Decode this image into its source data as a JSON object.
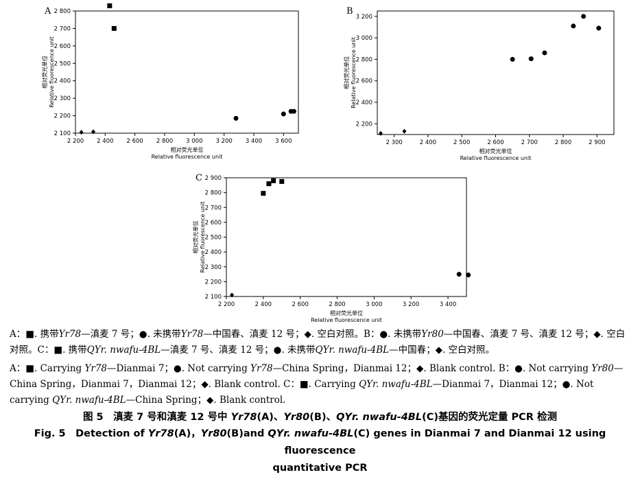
{
  "chart_data": [
    {
      "panel": "A",
      "type": "scatter",
      "xlim": [
        2200,
        3700
      ],
      "ylim": [
        2100,
        2800
      ],
      "x_ticks": [
        "2 200",
        "2 400",
        "2 600",
        "2 800",
        "3 000",
        "3 200",
        "3 400",
        "3 600"
      ],
      "y_ticks": [
        "2 100",
        "2 200",
        "2 300",
        "2 400",
        "2 500",
        "2 600",
        "2 700",
        "2 800"
      ],
      "xlabel": [
        "相对荧光单位",
        "Relative fluorescence unit"
      ],
      "ylabel": [
        "相对荧光单位",
        "Relative fluorescence unit"
      ],
      "series": [
        {
          "marker": "square",
          "points": [
            [
              2430,
              2830
            ],
            [
              2460,
              2700
            ]
          ]
        },
        {
          "marker": "circle",
          "points": [
            [
              3280,
              2185
            ],
            [
              3600,
              2210
            ],
            [
              3650,
              2225
            ],
            [
              3670,
              2225
            ]
          ]
        },
        {
          "marker": "diamond",
          "points": [
            [
              2240,
              2105
            ],
            [
              2320,
              2108
            ]
          ]
        }
      ]
    },
    {
      "panel": "B",
      "type": "scatter",
      "xlim": [
        2250,
        2950
      ],
      "ylim": [
        2100,
        3250
      ],
      "x_ticks": [
        "2 300",
        "2 400",
        "2 500",
        "2 600",
        "2 700",
        "2 800",
        "2 900"
      ],
      "y_ticks": [
        "2 200",
        "2 400",
        "2 600",
        "2 800",
        "3 000",
        "3 200"
      ],
      "xlabel": [
        "相对荧光单位",
        "Relative fluorescence unit"
      ],
      "ylabel": [
        "相对荧光单位",
        "Relative fluorescence unit"
      ],
      "series": [
        {
          "marker": "circle",
          "points": [
            [
              2650,
              2800
            ],
            [
              2705,
              2805
            ],
            [
              2745,
              2860
            ],
            [
              2830,
              3110
            ],
            [
              2860,
              3200
            ],
            [
              2905,
              3090
            ]
          ]
        },
        {
          "marker": "diamond",
          "points": [
            [
              2260,
              2110
            ],
            [
              2330,
              2130
            ]
          ]
        }
      ]
    },
    {
      "panel": "C",
      "type": "scatter",
      "xlim": [
        2200,
        3500
      ],
      "ylim": [
        2100,
        2900
      ],
      "x_ticks": [
        "2 200",
        "2 400",
        "2 600",
        "2 800",
        "3 000",
        "3 200",
        "3 400"
      ],
      "y_ticks": [
        "2 100",
        "2 200",
        "2 300",
        "2 400",
        "2 500",
        "2 600",
        "2 700",
        "2 800",
        "2 900"
      ],
      "xlabel": [
        "相对荧光单位",
        "Relative fluorescence unit"
      ],
      "ylabel": [
        "相对荧光单位",
        "Relative fluorescence unit"
      ],
      "series": [
        {
          "marker": "square",
          "points": [
            [
              2400,
              2795
            ],
            [
              2430,
              2860
            ],
            [
              2455,
              2880
            ],
            [
              2500,
              2875
            ]
          ]
        },
        {
          "marker": "circle",
          "points": [
            [
              3460,
              2250
            ],
            [
              3510,
              2245
            ]
          ]
        },
        {
          "marker": "diamond",
          "points": [
            [
              2230,
              2110
            ]
          ]
        }
      ]
    }
  ],
  "caption": {
    "cn_1": "A：■. 携带",
    "cn_g1": "Yr78",
    "cn_2": "—滇麦 7 号；●. 未携带",
    "cn_g2": "Yr78",
    "cn_3": "—中国春、滇麦 12 号；◆. 空白对照。B：●. 未携带",
    "cn_g3": "Yr80",
    "cn_4": "—中国春、滇麦 7 号、滇麦 12 号；◆. 空白对照。C：■. 携带",
    "cn_g4": "QYr. nwafu-4BL",
    "cn_5": "—滇麦 7 号、滇麦 12 号；●. 未携带",
    "cn_g5": "QYr. nwafu-4BL",
    "cn_6": "—中国春；◆. 空白对照。",
    "en_1": "A：■. Carrying ",
    "en_g1": "Yr78",
    "en_2": "—Dianmai 7；●. Not carrying ",
    "en_g2": "Yr78",
    "en_3": "—China Spring，Dianmai 12；◆. Blank control. B：●. Not carrying ",
    "en_g3": "Yr80",
    "en_4": "—China Spring，Dianmai 7，Dianmai 12；◆. Blank control. C：■. Carrying ",
    "en_g4": "QYr. nwafu-4BL",
    "en_5": "—Dianmai 7，Dianmai 12；●. Not carrying ",
    "en_g5": "QYr. nwafu-4BL",
    "en_6": "—China Spring；◆. Blank control.",
    "title_cn_1": "图 5　滇麦 7 号和滇麦 12 号中 ",
    "title_cn_g1": "Yr78",
    "title_cn_2": "(A)、",
    "title_cn_g2": "Yr80",
    "title_cn_3": "(B)、",
    "title_cn_g3": "QYr. nwafu-4BL",
    "title_cn_4": "(C)基因的荧光定量 PCR 检测",
    "title_en_1": "Fig. 5　Detection of ",
    "title_en_g1": "Yr78",
    "title_en_2": "(A)，",
    "title_en_g2": "Yr80",
    "title_en_3": "(B)and ",
    "title_en_g3": "QYr. nwafu-4BL",
    "title_en_4": "(C) genes in Dianmai 7 and Dianmai 12 using fluorescence",
    "title_en_5": "quantitative PCR"
  }
}
